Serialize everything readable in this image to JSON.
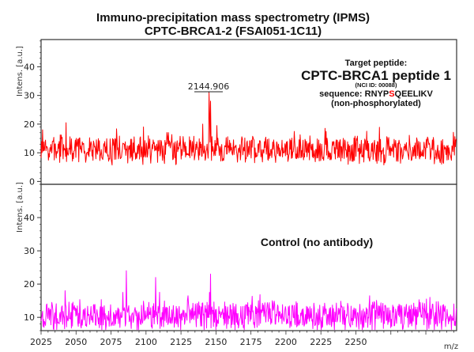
{
  "chart_data": [
    {
      "type": "line",
      "title": "Immuno-precipitation mass spectrometry (IPMS)",
      "subtitle": "CPTC-BRCA1-2 (FSAI051-1C11)",
      "panel": "top",
      "ylabel": "Intens. [a.u.]",
      "xlabel": "m/z",
      "xlim": [
        2025,
        2322
      ],
      "ylim": [
        -1,
        49.5
      ],
      "yticks": [
        0,
        10,
        20,
        30,
        40
      ],
      "color": "#ff0000",
      "noise": {
        "baseline": 11,
        "amplitude": 5.5,
        "step": 0.35,
        "seed": 7
      },
      "peaks": [
        {
          "x": 2144.906,
          "y": 31
        },
        {
          "x": 2146.2,
          "y": 28
        },
        {
          "x": 2145.5,
          "y": 24
        },
        {
          "x": 2150.8,
          "y": 19.5
        },
        {
          "x": 2140.5,
          "y": 20
        },
        {
          "x": 2043.0,
          "y": 20.5
        },
        {
          "x": 2026.0,
          "y": 18
        },
        {
          "x": 2098.0,
          "y": 19
        },
        {
          "x": 2228.0,
          "y": 18.5
        }
      ],
      "peak_label": "2144.906",
      "annotation": {
        "heading": "Target peptide:",
        "name": "CPTC-BRCA1 peptide 1",
        "id": "(NCI ID: 00088)",
        "sequence_prefix": "sequence: RNYP",
        "sequence_highlight": "S",
        "sequence_suffix": "QEELIKV",
        "note": "(non-phosphorylated)",
        "highlight_color": "#ff0000"
      }
    },
    {
      "type": "line",
      "panel": "bottom",
      "ylabel": "Intens. [a.u.]",
      "xlabel": "m/z",
      "xlim": [
        2025,
        2322
      ],
      "ylim": [
        6,
        50
      ],
      "yticks": [
        10,
        20,
        30,
        40
      ],
      "xticks": [
        2025,
        2050,
        2075,
        2100,
        2125,
        2150,
        2175,
        2200,
        2225,
        2250
      ],
      "color": "#ff00ff",
      "noise": {
        "baseline": 10.5,
        "amplitude": 5,
        "step": 0.35,
        "seed": 19
      },
      "peaks": [
        {
          "x": 2086.0,
          "y": 24
        },
        {
          "x": 2107.0,
          "y": 22
        },
        {
          "x": 2146.0,
          "y": 23
        },
        {
          "x": 2145.5,
          "y": 17.5
        },
        {
          "x": 2083.5,
          "y": 17.5
        },
        {
          "x": 2042.0,
          "y": 18
        },
        {
          "x": 2260.0,
          "y": 16.5
        },
        {
          "x": 2130.0,
          "y": 16.5
        }
      ],
      "annotation": {
        "label": "Control (no antibody)"
      }
    }
  ],
  "text": {
    "title": "Immuno-precipitation mass spectrometry (IPMS)",
    "subtitle": "CPTC-BRCA1-2 (FSAI051-1C11)",
    "ylabel": "Intens. [a.u.]",
    "xlabel": "m/z"
  }
}
